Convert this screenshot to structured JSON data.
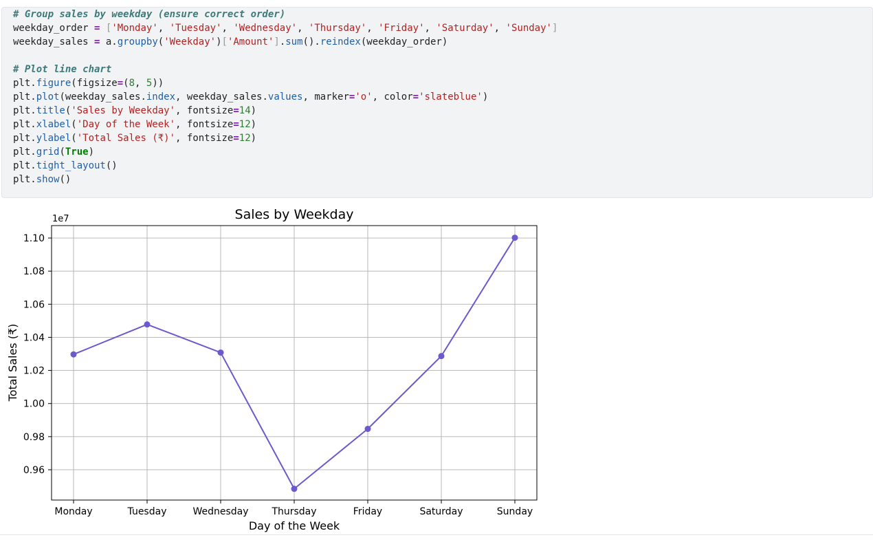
{
  "code_cell": {
    "lines": [
      [
        {
          "t": "# Group sales by weekday (ensure correct order)",
          "c": "comment"
        }
      ],
      [
        {
          "t": "weekday_order ",
          "c": "plain"
        },
        {
          "t": "=",
          "c": "op"
        },
        {
          "t": " ",
          "c": "plain"
        },
        {
          "t": "[",
          "c": "bracket"
        },
        {
          "t": "'Monday'",
          "c": "string"
        },
        {
          "t": ", ",
          "c": "plain"
        },
        {
          "t": "'Tuesday'",
          "c": "string"
        },
        {
          "t": ", ",
          "c": "plain"
        },
        {
          "t": "'Wednesday'",
          "c": "string"
        },
        {
          "t": ", ",
          "c": "plain"
        },
        {
          "t": "'Thursday'",
          "c": "string"
        },
        {
          "t": ", ",
          "c": "plain"
        },
        {
          "t": "'Friday'",
          "c": "string"
        },
        {
          "t": ", ",
          "c": "plain"
        },
        {
          "t": "'Saturday'",
          "c": "string"
        },
        {
          "t": ", ",
          "c": "plain"
        },
        {
          "t": "'Sunday'",
          "c": "string"
        },
        {
          "t": "]",
          "c": "bracket"
        }
      ],
      [
        {
          "t": "weekday_sales ",
          "c": "plain"
        },
        {
          "t": "=",
          "c": "op"
        },
        {
          "t": " a.",
          "c": "plain"
        },
        {
          "t": "groupby",
          "c": "func"
        },
        {
          "t": "(",
          "c": "plain"
        },
        {
          "t": "'Weekday'",
          "c": "string"
        },
        {
          "t": ")",
          "c": "plain"
        },
        {
          "t": "[",
          "c": "bracket"
        },
        {
          "t": "'Amount'",
          "c": "string"
        },
        {
          "t": "]",
          "c": "bracket"
        },
        {
          "t": ".",
          "c": "plain"
        },
        {
          "t": "sum",
          "c": "func"
        },
        {
          "t": "().",
          "c": "plain"
        },
        {
          "t": "reindex",
          "c": "func"
        },
        {
          "t": "(weekday_order)",
          "c": "plain"
        }
      ],
      [
        {
          "t": "",
          "c": "plain"
        }
      ],
      [
        {
          "t": "# Plot line chart",
          "c": "comment"
        }
      ],
      [
        {
          "t": "plt.",
          "c": "plain"
        },
        {
          "t": "figure",
          "c": "func"
        },
        {
          "t": "(figsize",
          "c": "plain"
        },
        {
          "t": "=",
          "c": "op"
        },
        {
          "t": "(",
          "c": "plain"
        },
        {
          "t": "8",
          "c": "number"
        },
        {
          "t": ", ",
          "c": "plain"
        },
        {
          "t": "5",
          "c": "number"
        },
        {
          "t": "))",
          "c": "plain"
        }
      ],
      [
        {
          "t": "plt.",
          "c": "plain"
        },
        {
          "t": "plot",
          "c": "func"
        },
        {
          "t": "(weekday_sales.",
          "c": "plain"
        },
        {
          "t": "index",
          "c": "func"
        },
        {
          "t": ", weekday_sales.",
          "c": "plain"
        },
        {
          "t": "values",
          "c": "func"
        },
        {
          "t": ", marker",
          "c": "plain"
        },
        {
          "t": "=",
          "c": "op"
        },
        {
          "t": "'o'",
          "c": "string"
        },
        {
          "t": ", color",
          "c": "plain"
        },
        {
          "t": "=",
          "c": "op"
        },
        {
          "t": "'slateblue'",
          "c": "string"
        },
        {
          "t": ")",
          "c": "plain"
        }
      ],
      [
        {
          "t": "plt.",
          "c": "plain"
        },
        {
          "t": "title",
          "c": "func"
        },
        {
          "t": "(",
          "c": "plain"
        },
        {
          "t": "'Sales by Weekday'",
          "c": "string"
        },
        {
          "t": ", fontsize",
          "c": "plain"
        },
        {
          "t": "=",
          "c": "op"
        },
        {
          "t": "14",
          "c": "number"
        },
        {
          "t": ")",
          "c": "plain"
        }
      ],
      [
        {
          "t": "plt.",
          "c": "plain"
        },
        {
          "t": "xlabel",
          "c": "func"
        },
        {
          "t": "(",
          "c": "plain"
        },
        {
          "t": "'Day of the Week'",
          "c": "string"
        },
        {
          "t": ", fontsize",
          "c": "plain"
        },
        {
          "t": "=",
          "c": "op"
        },
        {
          "t": "12",
          "c": "number"
        },
        {
          "t": ")",
          "c": "plain"
        }
      ],
      [
        {
          "t": "plt.",
          "c": "plain"
        },
        {
          "t": "ylabel",
          "c": "func"
        },
        {
          "t": "(",
          "c": "plain"
        },
        {
          "t": "'Total Sales (₹)'",
          "c": "string"
        },
        {
          "t": ", fontsize",
          "c": "plain"
        },
        {
          "t": "=",
          "c": "op"
        },
        {
          "t": "12",
          "c": "number"
        },
        {
          "t": ")",
          "c": "plain"
        }
      ],
      [
        {
          "t": "plt.",
          "c": "plain"
        },
        {
          "t": "grid",
          "c": "func"
        },
        {
          "t": "(",
          "c": "plain"
        },
        {
          "t": "True",
          "c": "kw"
        },
        {
          "t": ")",
          "c": "plain"
        }
      ],
      [
        {
          "t": "plt.",
          "c": "plain"
        },
        {
          "t": "tight_layout",
          "c": "func"
        },
        {
          "t": "()",
          "c": "plain"
        }
      ],
      [
        {
          "t": "plt.",
          "c": "plain"
        },
        {
          "t": "show",
          "c": "func"
        },
        {
          "t": "()",
          "c": "plain"
        }
      ]
    ]
  },
  "chart_data": {
    "type": "line",
    "title": "Sales by Weekday",
    "xlabel": "Day of the Week",
    "ylabel": "Total Sales (₹)",
    "offset_label": "1e7",
    "categories": [
      "Monday",
      "Tuesday",
      "Wednesday",
      "Thursday",
      "Friday",
      "Saturday",
      "Sunday"
    ],
    "values": [
      1.0297,
      1.0478,
      1.0308,
      0.9485,
      0.9847,
      1.0287,
      1.1002
    ],
    "y_ticks": [
      "0.96",
      "0.98",
      "1.00",
      "1.02",
      "1.04",
      "1.06",
      "1.08",
      "1.10"
    ],
    "y_tick_values": [
      0.96,
      0.98,
      1.0,
      1.02,
      1.04,
      1.06,
      1.08,
      1.1
    ],
    "ylim": [
      0.9417,
      1.1075
    ],
    "grid": true,
    "line_color": "#6a5acd",
    "marker": "circle"
  }
}
